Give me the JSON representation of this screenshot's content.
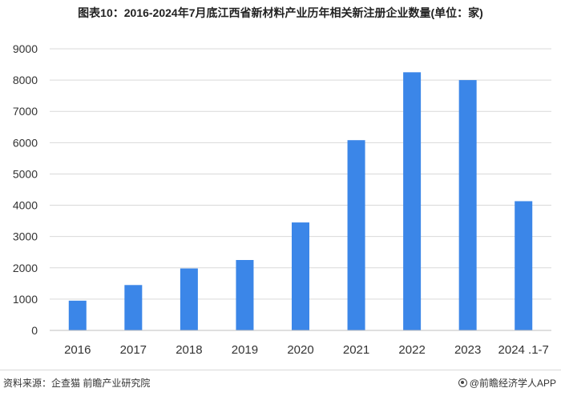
{
  "title": "图表10：2016-2024年7月底江西省新材料产业历年相关新注册企业数量(单位：家)",
  "source": "资料来源：企查猫 前瞻产业研究院",
  "brand": "@前瞻经济学人APP",
  "colors": {
    "bar": "#3b86e8",
    "grid": "#d9d9d9",
    "axis": "#bfbfbf"
  },
  "chart_data": {
    "type": "bar",
    "categories": [
      "2016",
      "2017",
      "2018",
      "2019",
      "2020",
      "2021",
      "2022",
      "2023",
      "2024 .1-7"
    ],
    "values": [
      950,
      1450,
      1980,
      2250,
      3450,
      6080,
      8250,
      8000,
      4130
    ],
    "title": "图表10：2016-2024年7月底江西省新材料产业历年相关新注册企业数量(单位：家)",
    "xlabel": "",
    "ylabel": "",
    "ylim": [
      0,
      9000
    ],
    "yticks": [
      0,
      1000,
      2000,
      3000,
      4000,
      5000,
      6000,
      7000,
      8000,
      9000
    ],
    "grid": true,
    "legend": "none"
  }
}
